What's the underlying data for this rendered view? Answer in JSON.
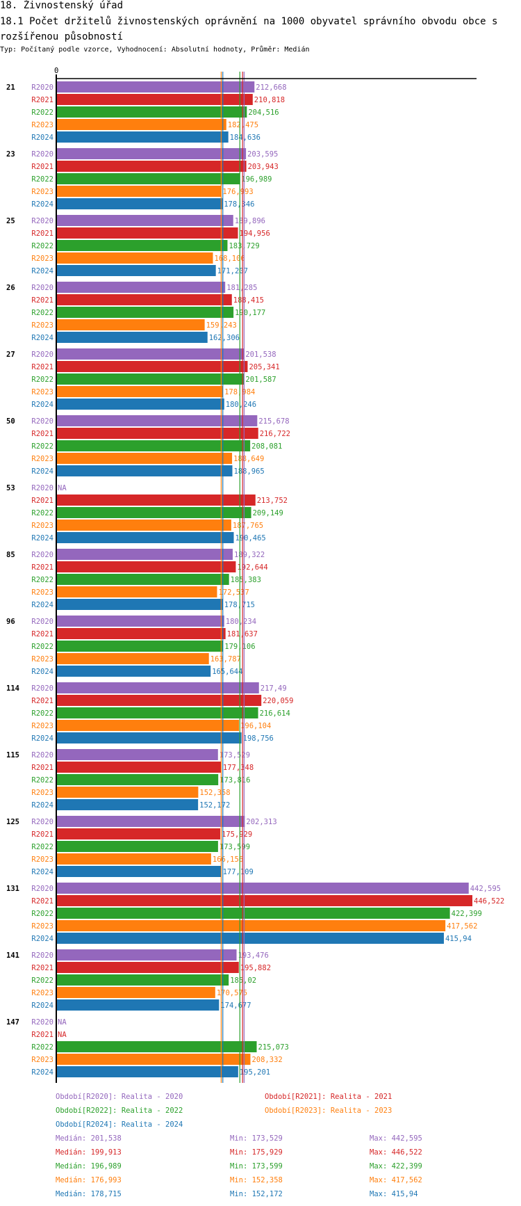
{
  "header": {
    "title": "18. Živnostenský úřad",
    "subtitle": "18.1 Počet držitelů živnostenských oprávnění na 1000 obyvatel správního obvodu obce s rozšířenou působností",
    "info": "Typ: Počítaný podle vzorce, Vyhodnocení: Absolutní hodnoty, Průměr: Medián"
  },
  "chart_data": {
    "type": "bar",
    "orientation": "horizontal",
    "axis_zero_label": "0",
    "xlim": [
      0,
      446.522
    ],
    "series_names": [
      "R2020",
      "R2021",
      "R2022",
      "R2023",
      "R2024"
    ],
    "colors": [
      "#9467bd",
      "#d62728",
      "#2ca02c",
      "#ff7f0e",
      "#1f77b4"
    ],
    "groups": [
      {
        "label": "21",
        "values": [
          "212,668",
          "210,818",
          "204,516",
          "182,475",
          "184,636"
        ]
      },
      {
        "label": "23",
        "values": [
          "203,595",
          "203,943",
          "196,989",
          "176,993",
          "178,346"
        ]
      },
      {
        "label": "25",
        "values": [
          "189,896",
          "194,956",
          "183,729",
          "168,106",
          "171,207"
        ]
      },
      {
        "label": "26",
        "values": [
          "181,285",
          "188,415",
          "190,177",
          "159,243",
          "162,306"
        ]
      },
      {
        "label": "27",
        "values": [
          "201,538",
          "205,341",
          "201,587",
          "178,984",
          "180,246"
        ]
      },
      {
        "label": "50",
        "values": [
          "215,678",
          "216,722",
          "208,081",
          "188,649",
          "188,965"
        ]
      },
      {
        "label": "53",
        "values": [
          "NA",
          "213,752",
          "209,149",
          "187,765",
          "190,465"
        ]
      },
      {
        "label": "85",
        "values": [
          "189,322",
          "192,644",
          "185,383",
          "172,537",
          "178,715"
        ]
      },
      {
        "label": "96",
        "values": [
          "180,234",
          "181,637",
          "179,106",
          "163,787",
          "165,644"
        ]
      },
      {
        "label": "114",
        "values": [
          "217,49",
          "220,059",
          "216,614",
          "196,104",
          "198,756"
        ]
      },
      {
        "label": "115",
        "values": [
          "173,529",
          "177,348",
          "173,816",
          "152,358",
          "152,172"
        ]
      },
      {
        "label": "125",
        "values": [
          "202,313",
          "175,929",
          "173,599",
          "166,156",
          "177,109"
        ]
      },
      {
        "label": "131",
        "values": [
          "442,595",
          "446,522",
          "422,399",
          "417,562",
          "415,94"
        ]
      },
      {
        "label": "141",
        "values": [
          "193,476",
          "195,882",
          "185,02",
          "170,575",
          "174,677"
        ]
      },
      {
        "label": "147",
        "values": [
          "NA",
          "NA",
          "215,073",
          "208,332",
          "195,201"
        ]
      }
    ],
    "legend": [
      "Období[R2020]: Realita - 2020",
      "Období[R2021]: Realita - 2021",
      "Období[R2022]: Realita - 2022",
      "Období[R2023]: Realita - 2023",
      "Období[R2024]: Realita - 2024"
    ],
    "stats": [
      {
        "median": "Medián: 201,538",
        "min": "Min: 173,529",
        "max": "Max: 442,595"
      },
      {
        "median": "Medián: 199,913",
        "min": "Min: 175,929",
        "max": "Max: 446,522"
      },
      {
        "median": "Medián: 196,989",
        "min": "Min: 173,599",
        "max": "Max: 422,399"
      },
      {
        "median": "Medián: 176,993",
        "min": "Min: 152,358",
        "max": "Max: 417,562"
      },
      {
        "median": "Medián: 178,715",
        "min": "Min: 152,172",
        "max": "Max: 415,94"
      }
    ]
  }
}
